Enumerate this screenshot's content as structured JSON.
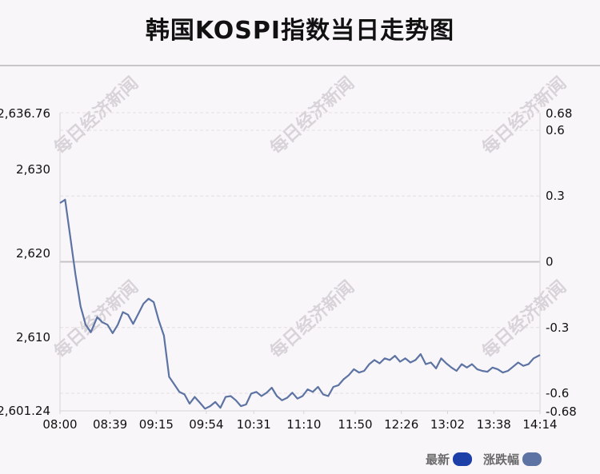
{
  "title": "韩国KOSPI指数当日走势图",
  "watermark": "每日经济新闻",
  "legend": [
    {
      "label": "最新",
      "color": "#1c3fa8"
    },
    {
      "label": "涨跌幅",
      "color": "#5c73a3"
    }
  ],
  "chart_data": {
    "type": "line",
    "title": "韩国KOSPI指数当日走势图",
    "x_ticks": [
      "08:00",
      "08:39",
      "09:15",
      "09:54",
      "10:31",
      "11:10",
      "11:50",
      "12:26",
      "13:02",
      "13:38",
      "14:14"
    ],
    "y_left_ticks": [
      "2,636.76",
      "2,630",
      "2,620",
      "2,610",
      "2,601.24"
    ],
    "y_left_range": [
      2601.24,
      2636.76
    ],
    "y_right_ticks": [
      "0.68",
      "0.6",
      "0.3",
      "0",
      "-0.3",
      "-0.6",
      "-0.68"
    ],
    "y_right_range": [
      -0.68,
      0.68
    ],
    "reference_value": 2619.0,
    "grid": true,
    "legend_position": "bottom-right",
    "series": [
      {
        "name": "最新",
        "color": "#5c73a3",
        "x": [
          "08:00",
          "08:04",
          "08:08",
          "08:12",
          "08:16",
          "08:20",
          "08:24",
          "08:29",
          "08:33",
          "08:37",
          "08:41",
          "08:45",
          "08:49",
          "08:53",
          "08:57",
          "09:01",
          "09:05",
          "09:09",
          "09:13",
          "09:17",
          "09:21",
          "09:25",
          "09:29",
          "09:33",
          "09:37",
          "09:41",
          "09:45",
          "09:49",
          "09:53",
          "09:57",
          "10:01",
          "10:05",
          "10:09",
          "10:13",
          "10:17",
          "10:21",
          "10:25",
          "10:29",
          "10:33",
          "10:37",
          "10:41",
          "10:45",
          "10:49",
          "10:53",
          "10:57",
          "11:01",
          "11:05",
          "11:09",
          "11:13",
          "11:17",
          "11:21",
          "11:25",
          "11:29",
          "11:33",
          "11:37",
          "11:41",
          "11:45",
          "11:49",
          "11:53",
          "11:57",
          "12:01",
          "12:05",
          "12:09",
          "12:13",
          "12:17",
          "12:21",
          "12:25",
          "12:29",
          "12:33",
          "12:37",
          "12:41",
          "12:45",
          "12:49",
          "12:53",
          "12:57",
          "13:01",
          "13:05",
          "13:09",
          "13:13",
          "13:17",
          "13:21",
          "13:25",
          "13:29",
          "13:33",
          "13:37",
          "13:41",
          "13:45",
          "13:49",
          "13:53",
          "13:57",
          "14:01",
          "14:05",
          "14:09",
          "14:14"
        ],
        "values": [
          2626.0,
          2626.4,
          2622.0,
          2617.5,
          2613.7,
          2611.5,
          2610.6,
          2612.4,
          2611.8,
          2611.5,
          2610.5,
          2611.5,
          2613.0,
          2612.7,
          2611.6,
          2612.8,
          2614.0,
          2614.6,
          2614.2,
          2612.0,
          2610.2,
          2605.3,
          2604.4,
          2603.5,
          2603.2,
          2602.1,
          2602.9,
          2602.2,
          2601.5,
          2601.8,
          2602.3,
          2601.6,
          2602.9,
          2603.0,
          2602.5,
          2601.8,
          2602.0,
          2603.3,
          2603.5,
          2603.0,
          2603.4,
          2604.0,
          2603.0,
          2602.5,
          2602.8,
          2603.4,
          2602.7,
          2603.0,
          2603.8,
          2603.5,
          2604.1,
          2603.2,
          2603.0,
          2604.1,
          2604.3,
          2605.0,
          2605.5,
          2606.2,
          2605.8,
          2606.0,
          2606.8,
          2607.3,
          2606.9,
          2607.5,
          2607.3,
          2607.8,
          2607.1,
          2607.5,
          2607.0,
          2607.3,
          2608.0,
          2606.8,
          2607.0,
          2606.3,
          2607.5,
          2606.9,
          2606.4,
          2606.0,
          2606.8,
          2606.4,
          2606.8,
          2606.2,
          2606.0,
          2605.9,
          2606.4,
          2606.2,
          2605.8,
          2606.0,
          2606.5,
          2607.0,
          2606.6,
          2606.8,
          2607.5,
          2607.9
        ]
      }
    ]
  }
}
